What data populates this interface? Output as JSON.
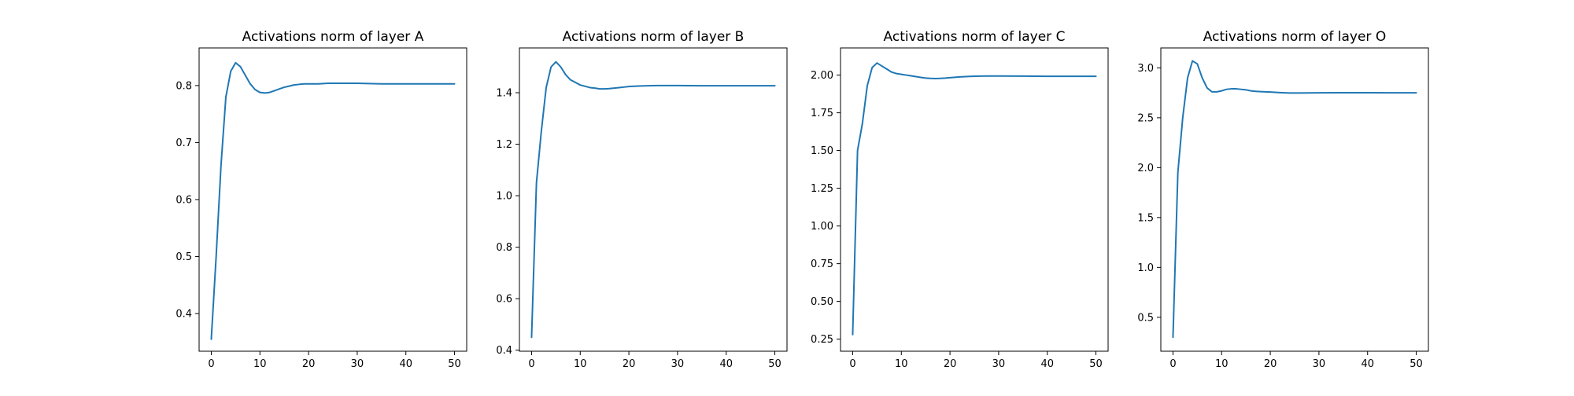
{
  "chart_data": [
    {
      "type": "line",
      "title": "Activations norm of layer A",
      "xlabel": "",
      "ylabel": "",
      "xlim": [
        -2.5,
        52.5
      ],
      "ylim": [
        0.334,
        0.866
      ],
      "xticks": [
        0,
        10,
        20,
        30,
        40,
        50
      ],
      "yticks": [
        0.4,
        0.5,
        0.6,
        0.7,
        0.8
      ],
      "ytick_labels": [
        "0.4",
        "0.5",
        "0.6",
        "0.7",
        "0.8"
      ],
      "grid": false,
      "series": [
        {
          "color": "#1f77b4",
          "x": [
            0,
            1,
            2,
            3,
            4,
            5,
            6,
            7,
            8,
            9,
            10,
            11,
            12,
            13,
            14,
            15,
            16,
            17,
            18,
            19,
            20,
            22,
            24,
            26,
            28,
            30,
            35,
            40,
            45,
            50
          ],
          "y": [
            0.355,
            0.5,
            0.66,
            0.78,
            0.825,
            0.84,
            0.833,
            0.818,
            0.803,
            0.793,
            0.788,
            0.787,
            0.788,
            0.791,
            0.794,
            0.797,
            0.799,
            0.801,
            0.802,
            0.803,
            0.803,
            0.803,
            0.804,
            0.804,
            0.804,
            0.804,
            0.803,
            0.803,
            0.803,
            0.803
          ]
        }
      ]
    },
    {
      "type": "line",
      "title": "Activations norm of layer B",
      "xlabel": "",
      "ylabel": "",
      "xlim": [
        -2.5,
        52.5
      ],
      "ylim": [
        0.396,
        1.574
      ],
      "xticks": [
        0,
        10,
        20,
        30,
        40,
        50
      ],
      "yticks": [
        0.4,
        0.6,
        0.8,
        1.0,
        1.2,
        1.4
      ],
      "ytick_labels": [
        "0.4",
        "0.6",
        "0.8",
        "1.0",
        "1.2",
        "1.4"
      ],
      "grid": false,
      "series": [
        {
          "color": "#1f77b4",
          "x": [
            0,
            1,
            2,
            3,
            4,
            5,
            6,
            7,
            8,
            9,
            10,
            11,
            12,
            13,
            14,
            15,
            16,
            17,
            18,
            19,
            20,
            22,
            24,
            26,
            28,
            30,
            35,
            40,
            45,
            50
          ],
          "y": [
            0.45,
            1.05,
            1.25,
            1.42,
            1.5,
            1.52,
            1.5,
            1.47,
            1.45,
            1.44,
            1.43,
            1.425,
            1.42,
            1.418,
            1.415,
            1.415,
            1.416,
            1.418,
            1.42,
            1.422,
            1.424,
            1.426,
            1.427,
            1.428,
            1.428,
            1.428,
            1.427,
            1.427,
            1.427,
            1.427
          ]
        }
      ]
    },
    {
      "type": "line",
      "title": "Activations norm of layer C",
      "xlabel": "",
      "ylabel": "",
      "xlim": [
        -2.5,
        52.5
      ],
      "ylim": [
        0.17,
        2.18
      ],
      "xticks": [
        0,
        10,
        20,
        30,
        40,
        50
      ],
      "yticks": [
        0.25,
        0.5,
        0.75,
        1.0,
        1.25,
        1.5,
        1.75,
        2.0
      ],
      "ytick_labels": [
        "0.25",
        "0.50",
        "0.75",
        "1.00",
        "1.25",
        "1.50",
        "1.75",
        "2.00"
      ],
      "grid": false,
      "series": [
        {
          "color": "#1f77b4",
          "x": [
            0,
            1,
            2,
            3,
            4,
            5,
            6,
            7,
            8,
            9,
            10,
            11,
            12,
            13,
            14,
            15,
            16,
            17,
            18,
            19,
            20,
            22,
            24,
            26,
            28,
            30,
            35,
            40,
            45,
            50
          ],
          "y": [
            0.28,
            1.5,
            1.68,
            1.93,
            2.05,
            2.08,
            2.06,
            2.04,
            2.02,
            2.01,
            2.005,
            2.0,
            1.995,
            1.99,
            1.985,
            1.98,
            1.978,
            1.977,
            1.978,
            1.98,
            1.983,
            1.988,
            1.991,
            1.993,
            1.994,
            1.994,
            1.993,
            1.992,
            1.992,
            1.992
          ]
        }
      ]
    },
    {
      "type": "line",
      "title": "Activations norm of layer O",
      "xlabel": "",
      "ylabel": "",
      "xlim": [
        -2.5,
        52.5
      ],
      "ylim": [
        0.16,
        3.2
      ],
      "xticks": [
        0,
        10,
        20,
        30,
        40,
        50
      ],
      "yticks": [
        0.5,
        1.0,
        1.5,
        2.0,
        2.5,
        3.0
      ],
      "ytick_labels": [
        "0.5",
        "1.0",
        "1.5",
        "2.0",
        "2.5",
        "3.0"
      ],
      "grid": false,
      "series": [
        {
          "color": "#1f77b4",
          "x": [
            0,
            1,
            2,
            3,
            4,
            5,
            6,
            7,
            8,
            9,
            10,
            11,
            12,
            13,
            14,
            15,
            16,
            17,
            18,
            19,
            20,
            22,
            24,
            26,
            28,
            30,
            35,
            40,
            45,
            50
          ],
          "y": [
            0.3,
            1.95,
            2.5,
            2.9,
            3.07,
            3.04,
            2.9,
            2.8,
            2.76,
            2.76,
            2.77,
            2.785,
            2.79,
            2.79,
            2.785,
            2.78,
            2.77,
            2.765,
            2.762,
            2.76,
            2.758,
            2.752,
            2.748,
            2.748,
            2.749,
            2.75,
            2.751,
            2.751,
            2.75,
            2.75
          ]
        }
      ]
    }
  ]
}
